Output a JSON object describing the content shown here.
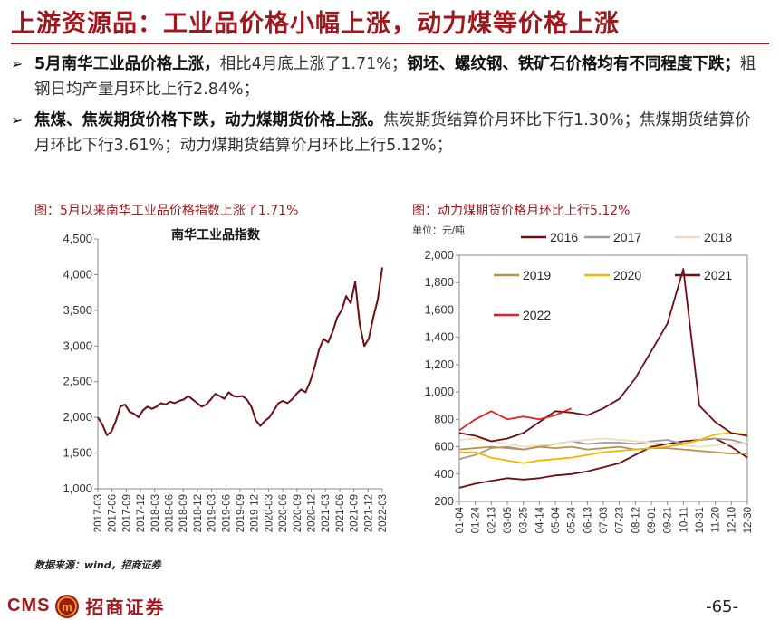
{
  "page": {
    "title": "上游资源品：工业品价格小幅上涨，动力煤等价格上涨",
    "page_number": "-65-",
    "source": "数据来源：wind，招商证券",
    "logo": {
      "text_en": "CMS",
      "text_cn": "招商证券",
      "badge_text": "m"
    }
  },
  "bullets": [
    {
      "bold": "5月南华工业品价格上涨，",
      "normal": "相比4月底上涨了1.71%；",
      "bold2": "钢坯、螺纹钢、铁矿石价格均有不同程度下跌；",
      "normal2": "粗钢日均产量月环比上行2.84%；"
    },
    {
      "bold": "焦煤、焦炭期货价格下跌，动力煤期货价格上涨。",
      "normal": "焦炭期货结算价月环比下行1.30%；焦煤期货结算价月环比下行3.61%；动力煤期货结算价月环比上行5.12%；"
    }
  ],
  "captions": {
    "left": "图：5月以来南华工业品价格指数上涨了1.71%",
    "right": "图：动力煤期货价格月环比上行5.12%"
  },
  "chart_data": [
    {
      "type": "line",
      "title": "南华工业品指数",
      "xlabel": "",
      "ylabel": "",
      "ylim": [
        1000,
        4500
      ],
      "yticks": [
        "1,000",
        "1,500",
        "2,000",
        "2,500",
        "3,000",
        "3,500",
        "4,000",
        "4,500"
      ],
      "x_ticks": [
        "2017-03",
        "2017-06",
        "2017-09",
        "2017-12",
        "2018-03",
        "2018-06",
        "2018-09",
        "2018-12",
        "2019-03",
        "2019-06",
        "2019-09",
        "2019-12",
        "2020-03",
        "2020-06",
        "2020-09",
        "2020-12",
        "2021-03",
        "2021-06",
        "2021-09",
        "2021-12",
        "2022-03"
      ],
      "series": [
        {
          "name": "",
          "color": "#6b0f14",
          "x": [
            0,
            1,
            2,
            3,
            4,
            5,
            6,
            7,
            8,
            9,
            10,
            11,
            12,
            13,
            14,
            15,
            16,
            17,
            18,
            19,
            20,
            21,
            22,
            23,
            24,
            25,
            26,
            27,
            28,
            29,
            30,
            31,
            32,
            33,
            34,
            35,
            36,
            37,
            38,
            39,
            40,
            41,
            42,
            43,
            44,
            45,
            46,
            47,
            48,
            49,
            50,
            51,
            52,
            53,
            54,
            55,
            56,
            57,
            58,
            59,
            60,
            61,
            62,
            63
          ],
          "values": [
            2000,
            1900,
            1750,
            1800,
            1950,
            2150,
            2180,
            2080,
            2050,
            2000,
            2100,
            2150,
            2120,
            2150,
            2200,
            2180,
            2220,
            2200,
            2230,
            2250,
            2300,
            2250,
            2200,
            2150,
            2180,
            2250,
            2330,
            2300,
            2260,
            2350,
            2300,
            2290,
            2300,
            2250,
            2150,
            1960,
            1880,
            1950,
            2000,
            2100,
            2200,
            2230,
            2200,
            2250,
            2330,
            2390,
            2350,
            2500,
            2700,
            2950,
            3100,
            3050,
            3200,
            3400,
            3500,
            3700,
            3600,
            3900,
            3300,
            3000,
            3100,
            3400,
            3650,
            4100
          ]
        }
      ]
    },
    {
      "type": "line",
      "title": "",
      "unit_label": "单位：元/吨",
      "xlabel": "",
      "ylabel": "",
      "ylim": [
        200,
        2000
      ],
      "yticks": [
        "200",
        "400",
        "600",
        "800",
        "1,000",
        "1,200",
        "1,400",
        "1,600",
        "1,800",
        "2,000"
      ],
      "x_ticks": [
        "01-04",
        "01-24",
        "02-13",
        "03-05",
        "03-25",
        "04-14",
        "05-04",
        "05-24",
        "06-13",
        "07-03",
        "07-23",
        "08-12",
        "09-01",
        "09-21",
        "10-11",
        "10-31",
        "11-20",
        "12-10",
        "12-30"
      ],
      "legend_position": "top",
      "series": [
        {
          "name": "2016",
          "color": "#6b0f14",
          "x": [
            0,
            1,
            2,
            3,
            4,
            5,
            6,
            7,
            8,
            9,
            10,
            11,
            12,
            13,
            14,
            15,
            16,
            17,
            18
          ],
          "values": [
            300,
            330,
            350,
            370,
            360,
            370,
            390,
            400,
            420,
            450,
            480,
            540,
            600,
            620,
            640,
            650,
            660,
            600,
            520
          ]
        },
        {
          "name": "2017",
          "color": "#9b9b9b",
          "x": [
            0,
            1,
            2,
            3,
            4,
            5,
            6,
            7,
            8,
            9,
            10,
            11,
            12,
            13,
            14,
            15,
            16,
            17,
            18
          ],
          "values": [
            510,
            540,
            590,
            600,
            580,
            600,
            620,
            640,
            620,
            630,
            630,
            620,
            640,
            650,
            620,
            650,
            660,
            650,
            620
          ]
        },
        {
          "name": "2018",
          "color": "#f0dcb8",
          "x": [
            0,
            1,
            2,
            3,
            4,
            5,
            6,
            7,
            8,
            9,
            10,
            11,
            12,
            13,
            14,
            15,
            16,
            17,
            18
          ],
          "values": [
            650,
            660,
            640,
            620,
            600,
            610,
            620,
            640,
            650,
            660,
            650,
            640,
            630,
            620,
            610,
            600,
            610,
            620,
            630
          ]
        },
        {
          "name": "2019",
          "color": "#b8924a",
          "x": [
            0,
            1,
            2,
            3,
            4,
            5,
            6,
            7,
            8,
            9,
            10,
            11,
            12,
            13,
            14,
            15,
            16,
            17,
            18
          ],
          "values": [
            580,
            590,
            600,
            590,
            580,
            600,
            590,
            600,
            580,
            590,
            600,
            580,
            590,
            590,
            580,
            570,
            560,
            550,
            550
          ]
        },
        {
          "name": "2020",
          "color": "#f2b800",
          "x": [
            0,
            1,
            2,
            3,
            4,
            5,
            6,
            7,
            8,
            9,
            10,
            11,
            12,
            13,
            14,
            15,
            16,
            17,
            18
          ],
          "values": [
            560,
            560,
            520,
            500,
            480,
            500,
            510,
            520,
            540,
            560,
            570,
            580,
            590,
            600,
            620,
            650,
            690,
            700,
            690
          ]
        },
        {
          "name": "2021",
          "color": "#6b0f14",
          "x": [
            0,
            1,
            2,
            3,
            4,
            5,
            6,
            7,
            8,
            9,
            10,
            11,
            12,
            13,
            14,
            15,
            16,
            17,
            18
          ],
          "values": [
            700,
            680,
            640,
            660,
            700,
            780,
            860,
            850,
            830,
            880,
            950,
            1100,
            1300,
            1500,
            1900,
            900,
            780,
            700,
            680
          ]
        },
        {
          "name": "2022",
          "color": "#e62020",
          "x": [
            0,
            1,
            2,
            3,
            4,
            5,
            6,
            7
          ],
          "values": [
            720,
            800,
            860,
            800,
            820,
            800,
            830,
            880
          ]
        }
      ]
    }
  ]
}
